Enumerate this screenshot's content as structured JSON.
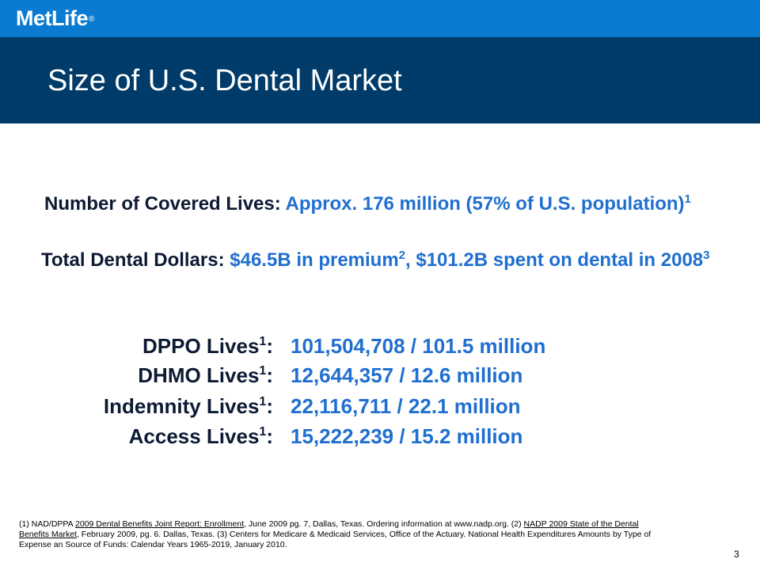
{
  "header": {
    "logo_text": "MetLife",
    "logo_mark": "®",
    "brand_color": "#0a7bd0",
    "title_band_color": "#003b69",
    "title": "Size of U.S. Dental Market"
  },
  "body": {
    "covered_lives": {
      "label": "Number of Covered Lives:",
      "value": " Approx. 176 million (57% of U.S. population)",
      "ref": "1"
    },
    "dental_dollars": {
      "label": "Total Dental Dollars:",
      "value_a": " $46.5B in premium",
      "ref_a": "2",
      "value_b": ", $101.2B spent on dental in 2008",
      "ref_b": "3"
    },
    "lives": [
      {
        "label": "DPPO Lives",
        "ref": "1",
        "colon": ":",
        "value": "101,504,708 / 101.5 million"
      },
      {
        "label": "DHMO Lives",
        "ref": "1",
        "colon": ":",
        "value": "12,644,357 / 12.6 million"
      },
      {
        "label": "Indemnity Lives",
        "ref": "1",
        "colon": ":",
        "value": "22,116,711 / 22.1 million"
      },
      {
        "label": "Access Lives",
        "ref": "1",
        "colon": ":",
        "value": "15,222,239 / 15.2 million"
      }
    ],
    "accent_color": "#1f6fd0",
    "text_color": "#0d1a33"
  },
  "footnote": {
    "part1": "(1) NAD/DPPA ",
    "link1": "2009 Dental Benefits Joint Report: Enrollment",
    "part2": ", June 2009 pg. 7, Dallas, Texas. Ordering information at www.nadp.org. (2) ",
    "link2": "NADP 2009 State of the Dental Benefits Market",
    "part3": ", February 2009, pg. 6. Dallas, Texas. (3) Centers for Medicare & Medicaid Services, Office of the Actuary. National Health Expenditures Amounts by Type of Expense an Source of Funds: Calendar Years 1965-2019, January 2010."
  },
  "page_number": "3"
}
